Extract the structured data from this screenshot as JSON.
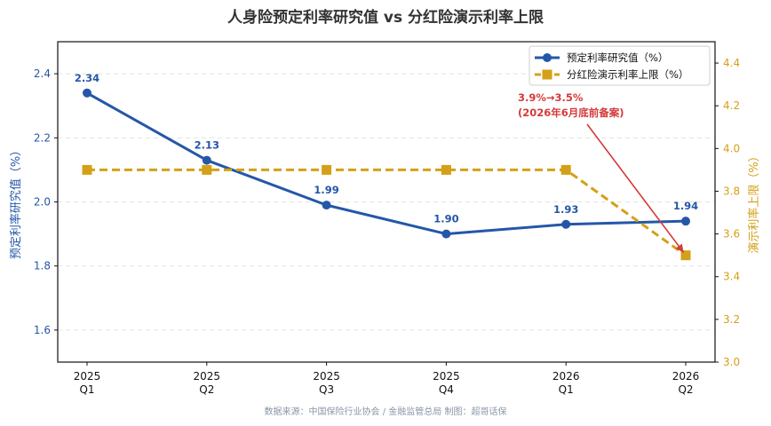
{
  "chart_data": {
    "type": "line",
    "title": "人身险预定利率研究值 vs 分红险演示利率上限",
    "categories": [
      [
        "2025",
        "Q1"
      ],
      [
        "2025",
        "Q2"
      ],
      [
        "2025",
        "Q3"
      ],
      [
        "2025",
        "Q4"
      ],
      [
        "2026",
        "Q1"
      ],
      [
        "2026",
        "Q2"
      ]
    ],
    "ylabel_left": "预定利率研究值（%）",
    "ylabel_right": "演示利率上限（%）",
    "ylim_left": [
      1.5,
      2.5
    ],
    "yticks_left": [
      "1.6",
      "1.8",
      "2.0",
      "2.2",
      "2.4"
    ],
    "ylim_right": [
      3.0,
      4.5
    ],
    "yticks_right": [
      "3.0",
      "3.2",
      "3.4",
      "3.6",
      "3.8",
      "4.0",
      "4.2",
      "4.4"
    ],
    "grid": "horizontal dashed",
    "legend_placement": "top-right",
    "series": [
      {
        "name": "预定利率研究值（%）",
        "axis": "left",
        "style": "solid line, circle markers",
        "color": "#2457a8",
        "values": [
          2.34,
          2.13,
          1.99,
          1.9,
          1.93,
          1.94
        ],
        "labels": [
          "2.34",
          "2.13",
          "1.99",
          "1.90",
          "1.93",
          "1.94"
        ]
      },
      {
        "name": "分红险演示利率上限（%）",
        "axis": "right",
        "style": "dashed line, square markers",
        "color": "#d4a017",
        "values": [
          3.9,
          3.9,
          3.9,
          3.9,
          3.9,
          3.5
        ]
      }
    ],
    "annotation": {
      "lines": [
        "3.9%→3.5%",
        "(2026年6月底前备案)"
      ],
      "color": "#d43a3a",
      "points_to_category": 5,
      "points_to_value": 3.5
    },
    "source": "数据来源：中国保险行业协会 / 金融监管总局  制图：超哥话保"
  }
}
